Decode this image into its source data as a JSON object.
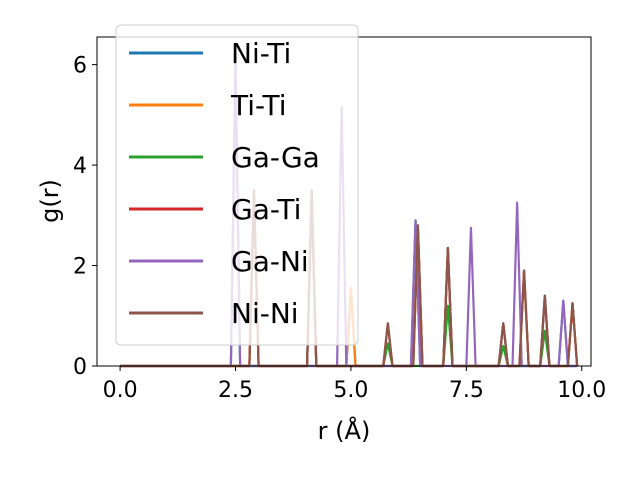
{
  "chart_data": {
    "type": "line",
    "xlabel": "r (Å)",
    "ylabel": "g(r)",
    "xlim": [
      -0.5,
      10.2
    ],
    "ylim": [
      0,
      6.55
    ],
    "xticks": [
      0.0,
      2.5,
      5.0,
      7.5,
      10.0
    ],
    "xtick_labels": [
      "0.0",
      "2.5",
      "5.0",
      "7.5",
      "10.0"
    ],
    "yticks": [
      0,
      2,
      4,
      6
    ],
    "ytick_labels": [
      "0",
      "2",
      "4",
      "6"
    ],
    "grid": false,
    "legend_position": "top-left",
    "series": [
      {
        "name": "Ni-Ti",
        "color": "#1f77b4",
        "peaks": [
          [
            2.5,
            6.1
          ],
          [
            4.15,
            3.5
          ],
          [
            5.0,
            1.55
          ],
          [
            6.4,
            2.9
          ],
          [
            7.1,
            2.35
          ],
          [
            8.3,
            0.85
          ],
          [
            9.2,
            1.4
          ],
          [
            9.6,
            1.3
          ]
        ]
      },
      {
        "name": "Ti-Ti",
        "color": "#ff7f0e",
        "peaks": [
          [
            2.9,
            3.5
          ],
          [
            4.15,
            3.5
          ],
          [
            5.0,
            1.55
          ],
          [
            6.45,
            2.8
          ],
          [
            7.1,
            2.35
          ],
          [
            8.75,
            1.9
          ],
          [
            9.8,
            1.25
          ]
        ]
      },
      {
        "name": "Ga-Ga",
        "color": "#2ca02c",
        "peaks": [
          [
            5.8,
            0.45
          ],
          [
            7.1,
            1.2
          ],
          [
            8.3,
            0.4
          ],
          [
            9.2,
            0.7
          ]
        ]
      },
      {
        "name": "Ga-Ti",
        "color": "#d62728",
        "peaks": [
          [
            2.9,
            3.45
          ],
          [
            4.15,
            3.45
          ],
          [
            5.8,
            0.85
          ],
          [
            6.45,
            2.8
          ],
          [
            7.1,
            2.35
          ],
          [
            8.3,
            0.85
          ],
          [
            8.75,
            1.9
          ],
          [
            9.2,
            1.4
          ],
          [
            9.8,
            1.25
          ]
        ]
      },
      {
        "name": "Ga-Ni",
        "color": "#9467bd",
        "peaks": [
          [
            2.5,
            6.1
          ],
          [
            4.8,
            5.15
          ],
          [
            6.4,
            2.9
          ],
          [
            7.6,
            2.75
          ],
          [
            8.6,
            3.25
          ],
          [
            9.6,
            1.3
          ]
        ]
      },
      {
        "name": "Ni-Ni",
        "color": "#8c564b",
        "peaks": [
          [
            2.9,
            3.5
          ],
          [
            4.15,
            3.5
          ],
          [
            5.8,
            0.85
          ],
          [
            6.45,
            2.8
          ],
          [
            7.1,
            2.35
          ],
          [
            8.3,
            0.85
          ],
          [
            8.75,
            1.9
          ],
          [
            9.2,
            1.4
          ],
          [
            9.8,
            1.25
          ]
        ]
      }
    ]
  }
}
